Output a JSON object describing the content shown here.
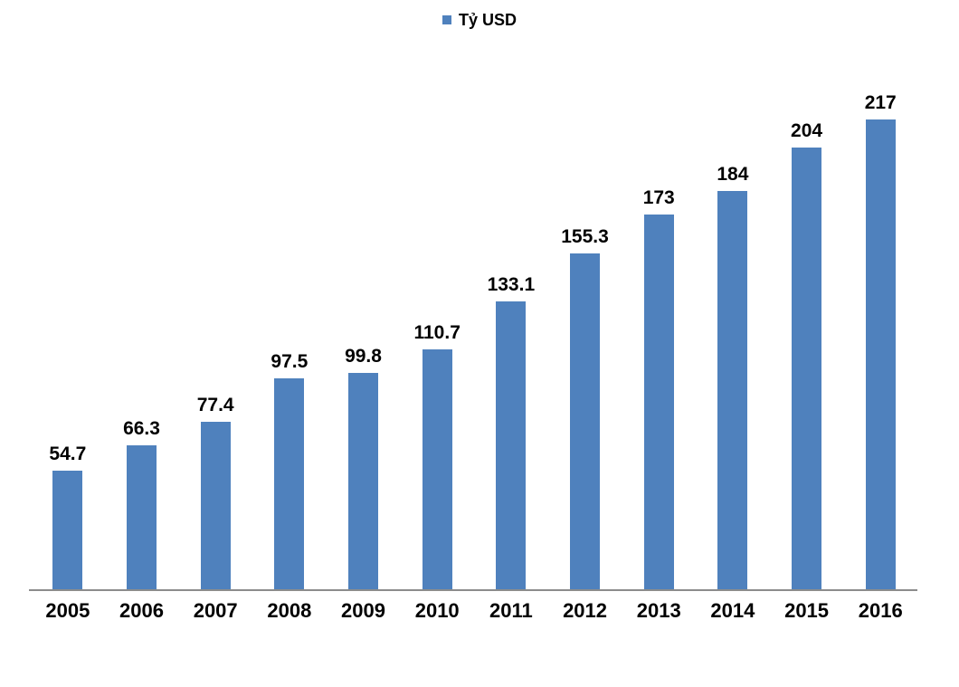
{
  "legend": {
    "label": "Tỷ USD"
  },
  "chart_data": {
    "type": "bar",
    "title": "",
    "xlabel": "",
    "ylabel": "",
    "series_name": "Tỷ USD",
    "categories": [
      "2005",
      "2006",
      "2007",
      "2008",
      "2009",
      "2010",
      "2011",
      "2012",
      "2013",
      "2014",
      "2015",
      "2016"
    ],
    "values": [
      54.7,
      66.3,
      77.4,
      97.5,
      99.8,
      110.7,
      133.1,
      155.3,
      173,
      184,
      204,
      217
    ],
    "data_labels": [
      "54.7",
      "66.3",
      "77.4",
      "97.5",
      "99.8",
      "110.7",
      "133.1",
      "155.3",
      "173",
      "184",
      "204",
      "217"
    ],
    "ylim": [
      0,
      250
    ],
    "grid": false,
    "y_axis_visible": false,
    "legend_position": "top-center",
    "colors": {
      "bar": "#4F81BD",
      "axis_line": "#8C8C8C",
      "label_text": "#000000"
    }
  }
}
